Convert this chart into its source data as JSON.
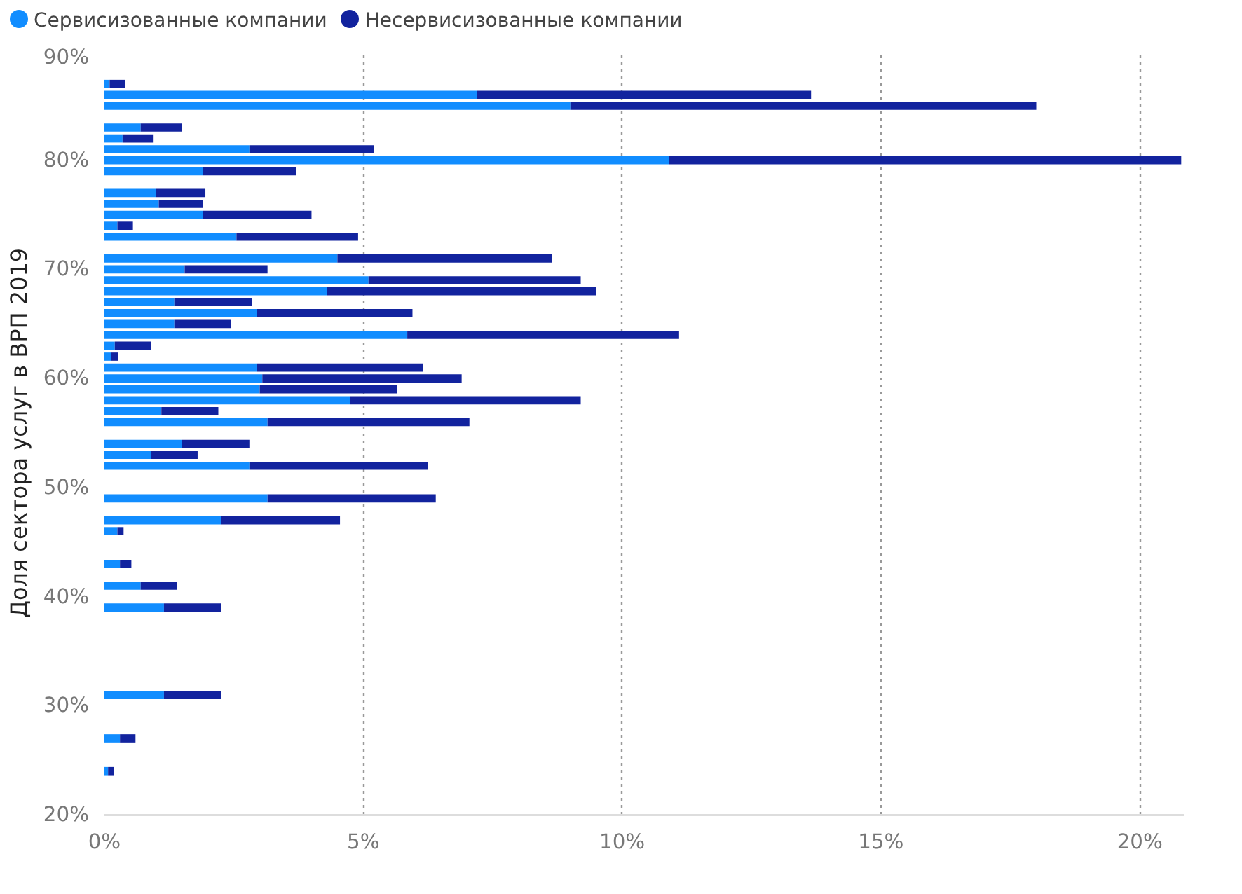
{
  "chart_data": {
    "type": "bar",
    "orientation": "horizontal",
    "stacked": true,
    "ylabel": "Доля сектора услуг в ВРП 2019",
    "x": [
      87,
      86,
      85,
      83,
      82,
      81,
      80,
      79,
      77,
      76,
      75,
      74,
      73,
      71,
      70,
      69,
      68,
      67,
      66,
      65,
      64,
      63,
      62,
      61,
      60,
      59,
      58,
      57,
      56,
      54,
      53,
      52,
      49,
      47,
      46,
      43,
      41,
      39,
      31,
      27,
      24
    ],
    "series": [
      {
        "name": "Сервисизованные компании",
        "color": "#118dff",
        "values": [
          0.1,
          7.2,
          9.0,
          0.7,
          0.35,
          2.8,
          10.9,
          1.9,
          1.0,
          1.05,
          1.9,
          0.25,
          2.55,
          4.5,
          1.55,
          5.1,
          4.3,
          1.35,
          2.95,
          1.35,
          5.85,
          0.2,
          0.13,
          2.95,
          3.05,
          3.0,
          4.75,
          1.1,
          3.15,
          1.5,
          0.9,
          2.8,
          3.15,
          2.25,
          0.25,
          0.3,
          0.7,
          1.15,
          1.15,
          0.3,
          0.07
        ]
      },
      {
        "name": "Несервисизованные компании",
        "color": "#12239e",
        "values": [
          0.3,
          6.45,
          9.0,
          0.8,
          0.6,
          2.4,
          9.9,
          1.8,
          0.95,
          0.85,
          2.1,
          0.3,
          2.35,
          4.15,
          1.6,
          4.1,
          5.2,
          1.5,
          3.0,
          1.1,
          5.25,
          0.7,
          0.14,
          3.2,
          3.85,
          2.65,
          4.45,
          1.1,
          3.9,
          1.3,
          0.9,
          3.45,
          3.25,
          2.3,
          0.12,
          0.22,
          0.7,
          1.1,
          1.1,
          0.3,
          0.11
        ]
      }
    ],
    "xlim": [
      0,
      20.85
    ],
    "xticks": [
      {
        "value": 0,
        "label": "0%"
      },
      {
        "value": 5,
        "label": "5%"
      },
      {
        "value": 10,
        "label": "10%"
      },
      {
        "value": 15,
        "label": "15%"
      },
      {
        "value": 20,
        "label": "20%"
      }
    ],
    "ylim": [
      20,
      90
    ],
    "yticks": [
      {
        "value": 20,
        "label": "20%"
      },
      {
        "value": 30,
        "label": "30%"
      },
      {
        "value": 40,
        "label": "40%"
      },
      {
        "value": 50,
        "label": "50%"
      },
      {
        "value": 60,
        "label": "60%"
      },
      {
        "value": 70,
        "label": "70%"
      },
      {
        "value": 80,
        "label": "80%"
      },
      {
        "value": 90,
        "label": "90%"
      }
    ],
    "grid": "x",
    "legend": "top left"
  }
}
